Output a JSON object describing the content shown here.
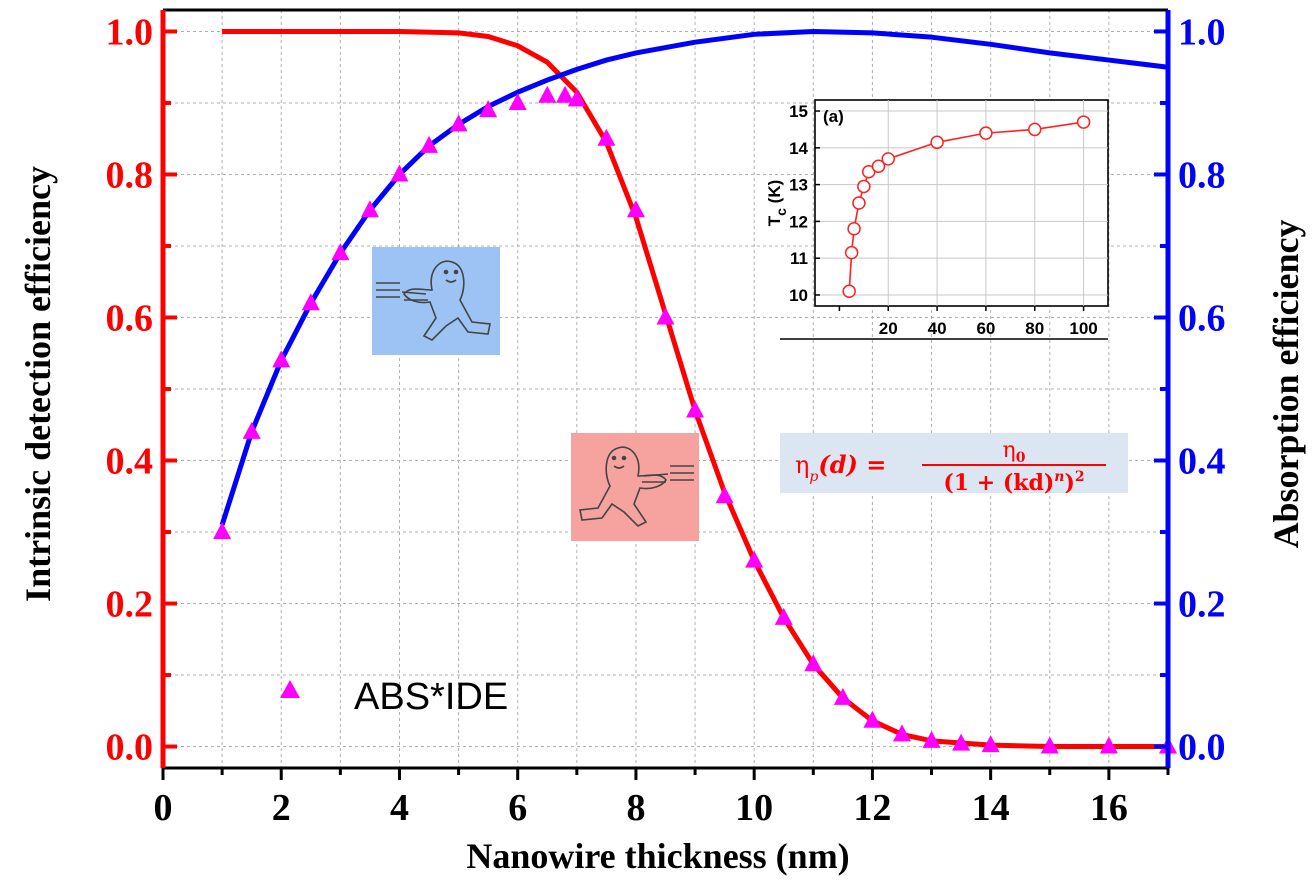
{
  "chart_data": [
    {
      "type": "line",
      "xlabel": "Nanowire thickness (nm)",
      "ylabel_left": "Intrinsic detection efficiency",
      "ylabel_right": "Absorption efficiency",
      "xlim": [
        0,
        17
      ],
      "ylim_left": [
        -0.03,
        1.03
      ],
      "ylim_right": [
        -0.03,
        1.03
      ],
      "xticks": [
        "0",
        "2",
        "4",
        "6",
        "8",
        "10",
        "12",
        "14",
        "16"
      ],
      "yticks_left": [
        "0.0",
        "0.2",
        "0.4",
        "0.6",
        "0.8",
        "1.0"
      ],
      "yticks_right": [
        "0.0",
        "0.2",
        "0.4",
        "0.6",
        "0.8",
        "1.0"
      ],
      "grid": true,
      "colors": {
        "left_axis": "#ff0000",
        "right_axis": "#0000ff",
        "markers": "#ff00ff"
      },
      "series": [
        {
          "axis": "left",
          "style": "line",
          "color": "#ff0000",
          "x": [
            1,
            2,
            3,
            4,
            5,
            5.5,
            6,
            6.5,
            7,
            7.5,
            8,
            8.5,
            9,
            9.5,
            10,
            10.5,
            11,
            11.5,
            12,
            12.5,
            13,
            14,
            15,
            16,
            17
          ],
          "y": [
            1.0,
            1.0,
            1.0,
            1.0,
            0.998,
            0.993,
            0.98,
            0.957,
            0.915,
            0.845,
            0.74,
            0.605,
            0.47,
            0.355,
            0.26,
            0.18,
            0.115,
            0.068,
            0.036,
            0.017,
            0.008,
            0.002,
            0.0,
            0.0,
            0.0
          ]
        },
        {
          "axis": "right",
          "style": "line",
          "color": "#0000ff",
          "x": [
            1,
            1.5,
            2,
            2.5,
            3,
            3.5,
            4,
            4.5,
            5,
            5.5,
            6,
            6.5,
            7,
            7.5,
            8,
            9,
            10,
            11,
            12,
            13,
            14,
            15,
            16,
            17
          ],
          "y": [
            0.31,
            0.44,
            0.54,
            0.62,
            0.69,
            0.75,
            0.8,
            0.84,
            0.87,
            0.895,
            0.915,
            0.932,
            0.947,
            0.96,
            0.97,
            0.985,
            0.996,
            1.0,
            0.998,
            0.992,
            0.982,
            0.97,
            0.96,
            0.95
          ]
        },
        {
          "name": "ABS*IDE",
          "axis": "left",
          "style": "marker",
          "marker": "triangle",
          "color": "#ff00ff",
          "x": [
            1,
            1.5,
            2,
            2.5,
            3,
            3.5,
            4,
            4.5,
            5,
            5.5,
            6,
            6.5,
            6.8,
            7,
            7.5,
            8,
            8.5,
            9,
            9.5,
            10,
            10.5,
            11,
            11.5,
            12,
            12.5,
            13,
            13.5,
            14,
            15,
            16,
            17
          ],
          "y": [
            0.3,
            0.44,
            0.54,
            0.62,
            0.69,
            0.75,
            0.8,
            0.84,
            0.87,
            0.89,
            0.9,
            0.91,
            0.91,
            0.905,
            0.85,
            0.75,
            0.6,
            0.47,
            0.35,
            0.26,
            0.18,
            0.115,
            0.068,
            0.036,
            0.017,
            0.008,
            0.004,
            0.002,
            0.0,
            0.0,
            0.0
          ]
        }
      ],
      "legend": {
        "placement": "bottom-left",
        "entries": [
          "ABS*IDE"
        ]
      },
      "annotation": {
        "formula_lhs_symbol": "η",
        "formula_lhs_subscript": "p",
        "formula_lhs_arg": "(d) =",
        "formula_numerator": "η",
        "formula_numerator_sub": "0",
        "formula_denominator": "(1 + (kd)",
        "formula_denominator_exp": "n",
        "formula_denominator_close": ")",
        "formula_denominator_sq": "2",
        "formula_color": "#ff0000"
      }
    },
    {
      "type": "line",
      "panel_label": "(a)",
      "ylabel": "T",
      "ylabel_sub": "c",
      "ylabel_unit": " (K)",
      "xlim": [
        -10,
        110
      ],
      "ylim": [
        9.7,
        15.3
      ],
      "xticks": [
        "20",
        "40",
        "60",
        "80",
        "100"
      ],
      "yticks": [
        "10",
        "11",
        "12",
        "13",
        "14",
        "15"
      ],
      "grid": true,
      "color": "#ff2020",
      "x": [
        4,
        5,
        6,
        8,
        10,
        12,
        16,
        20,
        40,
        60,
        80,
        100
      ],
      "y": [
        10.1,
        11.15,
        11.8,
        12.5,
        12.95,
        13.35,
        13.5,
        13.7,
        14.15,
        14.4,
        14.5,
        14.7
      ]
    }
  ]
}
